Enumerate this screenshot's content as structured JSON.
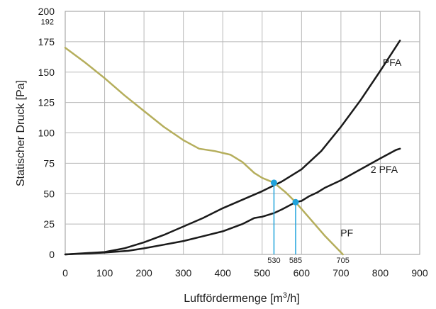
{
  "chart_data": {
    "type": "line",
    "xlabel_pre": "Luftfördermenge [m",
    "xlabel_sup": "3",
    "xlabel_post": "/h]",
    "ylabel": "Statischer Druck [Pa]",
    "xlim": [
      0,
      900
    ],
    "ylim": [
      0,
      200
    ],
    "x_ticks": [
      "0",
      "100",
      "200",
      "300",
      "400",
      "500",
      "600",
      "700",
      "800",
      "900"
    ],
    "y_ticks": [
      "0",
      "25",
      "50",
      "75",
      "100",
      "125",
      "150",
      "175",
      "200"
    ],
    "grid": true,
    "annotations": {
      "y_extra_tick": {
        "value": 192,
        "label": "192"
      },
      "x_markers": [
        {
          "value": 530,
          "label": "530"
        },
        {
          "value": 585,
          "label": "585"
        },
        {
          "value": 705,
          "label": "705"
        }
      ],
      "operating_points": [
        {
          "x": 530,
          "y": 59
        },
        {
          "x": 585,
          "y": 43
        }
      ]
    },
    "colors": {
      "system": "#b5ae5c",
      "fan": "#1a1a1a",
      "marker": "#1fa3dc"
    },
    "series": [
      {
        "name": "PFA",
        "x": [
          0,
          100,
          150,
          200,
          250,
          300,
          350,
          400,
          450,
          500,
          550,
          600,
          650,
          700,
          750,
          800,
          850
        ],
        "y": [
          0,
          2,
          5,
          10,
          16,
          23,
          30,
          38,
          45,
          52,
          60,
          70,
          85,
          105,
          127,
          151,
          176
        ]
      },
      {
        "name": "2 PFA",
        "x": [
          0,
          100,
          160,
          200,
          250,
          300,
          350,
          400,
          450,
          480,
          500,
          530,
          550,
          585,
          600,
          620,
          640,
          660,
          700,
          750,
          800,
          840,
          850
        ],
        "y": [
          0,
          1.5,
          3,
          5,
          8,
          11,
          15,
          19,
          25,
          30,
          31,
          34,
          37,
          43,
          44,
          48,
          51,
          55,
          61,
          70,
          79,
          86,
          87
        ]
      },
      {
        "name": "PF",
        "x": [
          0,
          50,
          100,
          150,
          200,
          250,
          300,
          340,
          380,
          420,
          450,
          480,
          500,
          530,
          560,
          585,
          620,
          660,
          705
        ],
        "y": [
          170,
          158,
          145,
          131,
          118,
          105,
          94,
          87,
          85,
          82,
          76,
          67,
          63,
          59,
          51,
          43,
          30,
          15,
          0
        ]
      }
    ],
    "label_positions": {
      "PFA": {
        "x": 830,
        "y": 155
      },
      "2 PFA": {
        "x": 810,
        "y": 67
      },
      "PF": {
        "x": 715,
        "y": 15
      }
    }
  }
}
